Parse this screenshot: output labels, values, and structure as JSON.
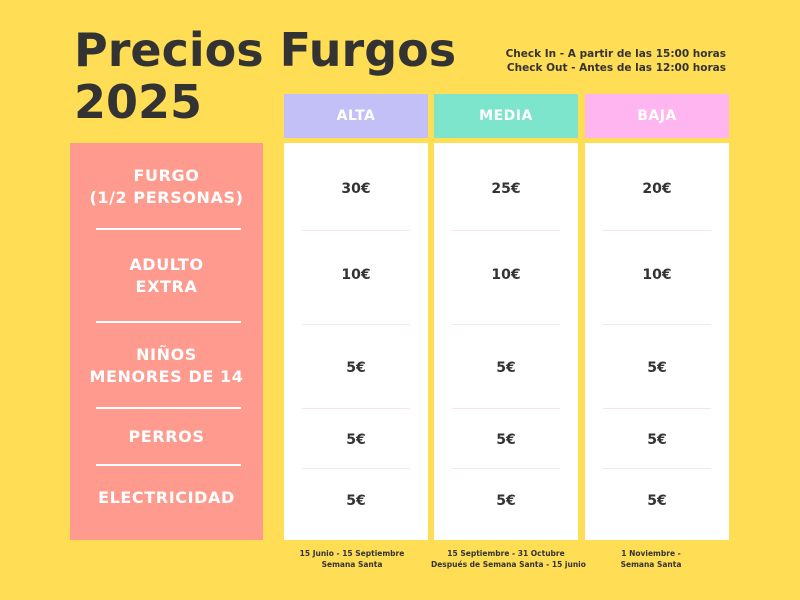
{
  "title": {
    "line1": "Precios Furgos",
    "line2": "2025"
  },
  "check": {
    "in": "Check In - A partir de las 15:00 horas",
    "out": "Check Out - Antes de las 12:00 horas"
  },
  "rows": [
    {
      "lines": [
        "FURGO",
        "(1/2 PERSONAS)"
      ]
    },
    {
      "lines": [
        "ADULTO",
        "EXTRA"
      ]
    },
    {
      "lines": [
        "NIÑOS",
        "MENORES DE 14"
      ]
    },
    {
      "lines": [
        "PERROS"
      ]
    },
    {
      "lines": [
        "ELECTRICIDAD"
      ]
    }
  ],
  "columns": [
    {
      "label": "ALTA",
      "color": "#c2c0f7",
      "prices": [
        "30€",
        "10€",
        "5€",
        "5€",
        "5€"
      ],
      "season": [
        "15 Junio - 15 Septiembre",
        "Semana Santa"
      ]
    },
    {
      "label": "MEDIA",
      "color": "#7de5cc",
      "prices": [
        "25€",
        "10€",
        "5€",
        "5€",
        "5€"
      ],
      "season": [
        "15 Septiembre - 31 Octubre",
        "Después de Semana Santa - 15 junio"
      ]
    },
    {
      "label": "BAJA",
      "color": "#ffb5f0",
      "prices": [
        "20€",
        "10€",
        "5€",
        "5€",
        "5€"
      ],
      "season": [
        "1 Noviembre -",
        "Semana Santa"
      ]
    }
  ],
  "colors": {
    "background": "#ffdd55",
    "labels": "#ff9b8e",
    "text": "#333333"
  }
}
